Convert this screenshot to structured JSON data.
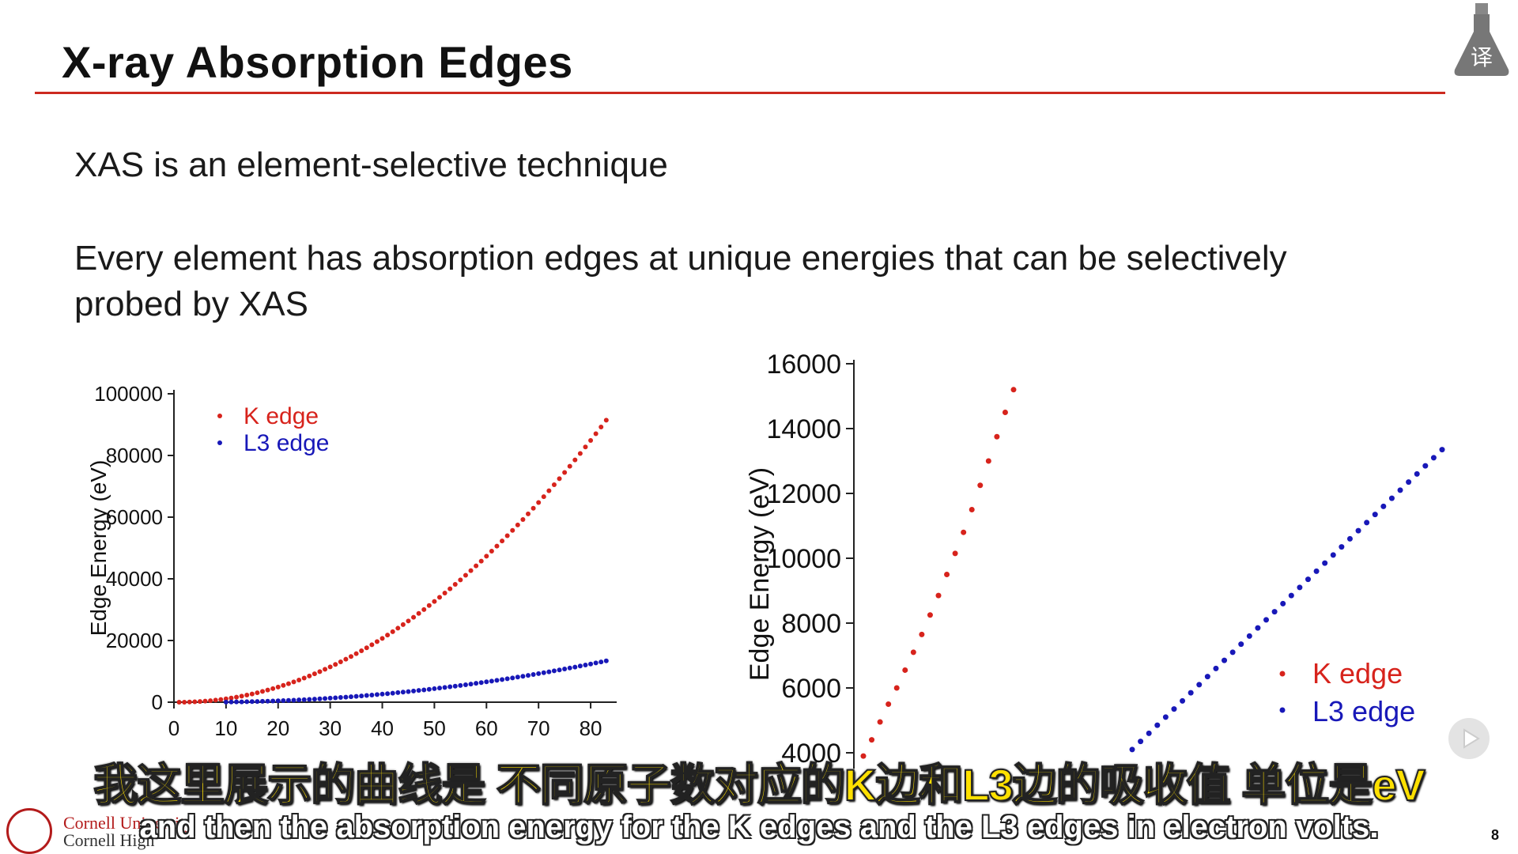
{
  "slide": {
    "title": "X-ray Absorption Edges",
    "bullet1": "XAS is an element-selective technique",
    "bullet2": "Every element has absorption edges at unique energies that can be selectively probed by XAS",
    "page_number": "8"
  },
  "footer": {
    "line1": "Cornell University",
    "line2": "Cornell High"
  },
  "subtitles": {
    "chinese": "我这里展示的曲线是 不同原子数对应的K边和L3边的吸收值 单位是eV",
    "english": "and then the absorption energy for the K edges and the L3 edges in electron volts."
  },
  "colors": {
    "k_edge": "#d7231c",
    "l3_edge": "#1818b8",
    "title_rule": "#cc2a1f"
  },
  "icons": {
    "top_right": "flask-translate-icon",
    "bottom_right": "play-icon"
  },
  "chart_data": [
    {
      "type": "scatter",
      "title": "",
      "xlabel": "",
      "ylabel": "Edge Energy (eV)",
      "xlim": [
        0,
        85
      ],
      "ylim": [
        0,
        100000
      ],
      "x_ticks": [
        "0",
        "10",
        "20",
        "30",
        "40",
        "50",
        "60",
        "70",
        "80"
      ],
      "y_ticks": [
        "0",
        "20000",
        "40000",
        "60000",
        "80000",
        "100000"
      ],
      "legend": {
        "placement": "top-left",
        "entries": [
          "K edge",
          "L3 edge"
        ]
      },
      "series": [
        {
          "name": "K edge",
          "color": "#d7231c",
          "formula": "13.6*(Z-1)^2, Z=1..83",
          "x_range": [
            1,
            83
          ]
        },
        {
          "name": "L3 edge",
          "color": "#1818b8",
          "formula": "L3 edge energy, Z=10..83",
          "x_range": [
            10,
            83
          ],
          "y_end": 13400
        }
      ]
    },
    {
      "type": "scatter",
      "title": "",
      "xlabel": "",
      "ylabel": "Edge Energy (eV)",
      "ylim": [
        4000,
        16000
      ],
      "y_ticks": [
        "4000",
        "6000",
        "8000",
        "10000",
        "12000",
        "14000",
        "16000"
      ],
      "legend": {
        "placement": "bottom-right",
        "entries": [
          "K edge",
          "L3 edge"
        ]
      },
      "series": [
        {
          "name": "K edge",
          "color": "#d7231c",
          "y_values": [
            3900,
            4400,
            4950,
            5500,
            6000,
            6550,
            7100,
            7650,
            8250,
            8850,
            9500,
            10150,
            10800,
            11500,
            12250,
            13000,
            13750,
            14500,
            15200
          ]
        },
        {
          "name": "L3 edge",
          "color": "#1818b8",
          "y_values": [
            4100,
            4350,
            4600,
            4850,
            5100,
            5350,
            5600,
            5850,
            6100,
            6350,
            6600,
            6850,
            7100,
            7350,
            7600,
            7850,
            8100,
            8350,
            8600,
            8850,
            9100,
            9350,
            9600,
            9850,
            10100,
            10350,
            10600,
            10850,
            11100,
            11350,
            11600,
            11850,
            12100,
            12350,
            12600,
            12850,
            13100,
            13350
          ]
        }
      ]
    }
  ]
}
